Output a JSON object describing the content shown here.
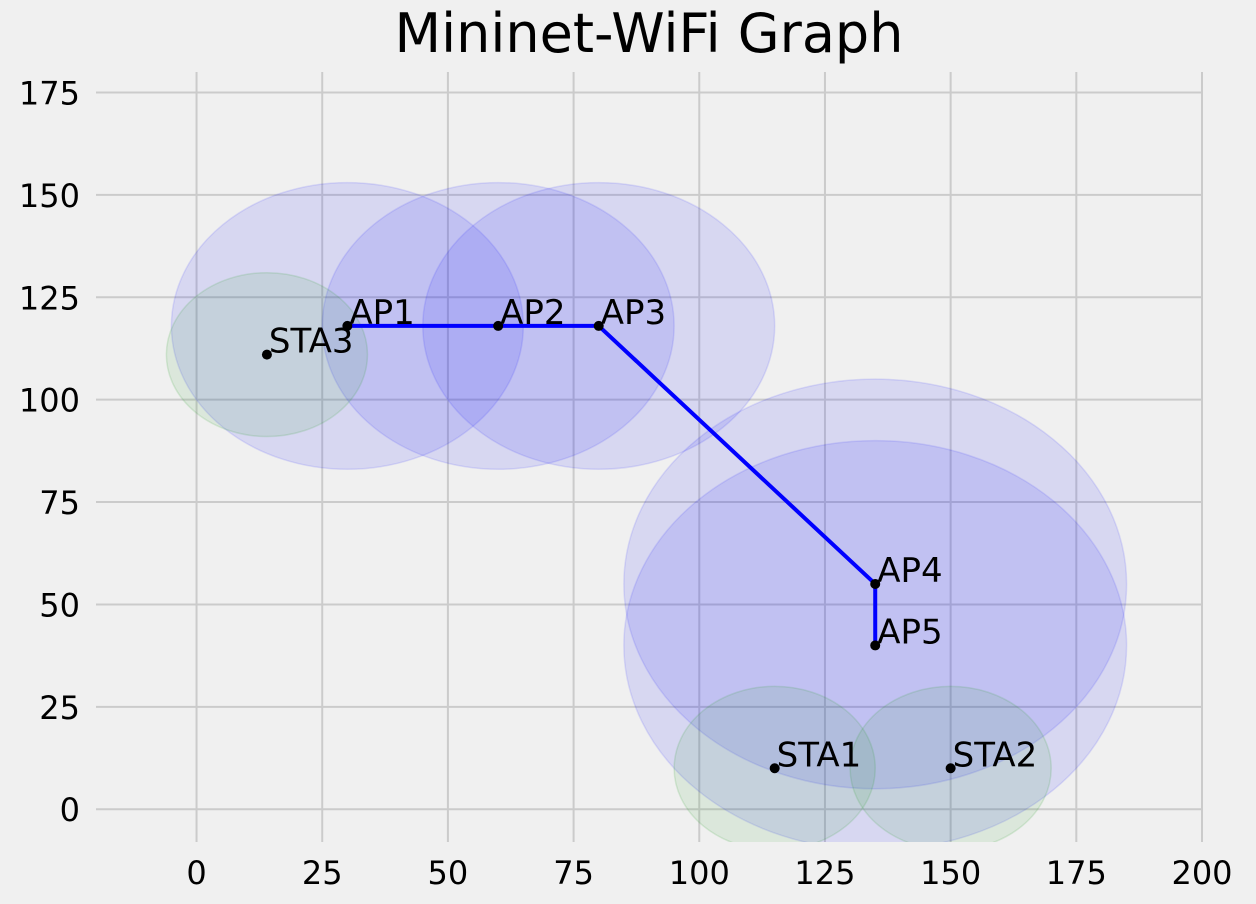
{
  "chart_data": {
    "type": "scatter",
    "title": "Mininet-WiFi Graph",
    "xlabel": "",
    "ylabel": "",
    "xlim": [
      -20,
      200
    ],
    "ylim": [
      -8,
      180
    ],
    "grid": true,
    "x_ticks": [
      0,
      25,
      50,
      75,
      100,
      125,
      150,
      175,
      200
    ],
    "y_ticks": [
      0,
      25,
      50,
      75,
      100,
      125,
      150,
      175
    ],
    "access_points": [
      {
        "label": "AP1",
        "x": 30,
        "y": 118,
        "range": 35
      },
      {
        "label": "AP2",
        "x": 60,
        "y": 118,
        "range": 35
      },
      {
        "label": "AP3",
        "x": 80,
        "y": 118,
        "range": 35
      },
      {
        "label": "AP4",
        "x": 135,
        "y": 55,
        "range": 50
      },
      {
        "label": "AP5",
        "x": 135,
        "y": 40,
        "range": 50
      }
    ],
    "stations": [
      {
        "label": "STA1",
        "x": 115,
        "y": 10,
        "range": 20
      },
      {
        "label": "STA2",
        "x": 150,
        "y": 10,
        "range": 20
      },
      {
        "label": "STA3",
        "x": 14,
        "y": 111,
        "range": 20
      }
    ],
    "links": [
      [
        "AP1",
        "AP2"
      ],
      [
        "AP2",
        "AP3"
      ],
      [
        "AP3",
        "AP4"
      ],
      [
        "AP4",
        "AP5"
      ]
    ],
    "colors": {
      "background": "#f0f0f0",
      "grid": "#cbcbcb",
      "ap_range": "#0000ff",
      "station_range": "#2ca02c",
      "link": "#0000ff",
      "node": "#000000"
    }
  }
}
